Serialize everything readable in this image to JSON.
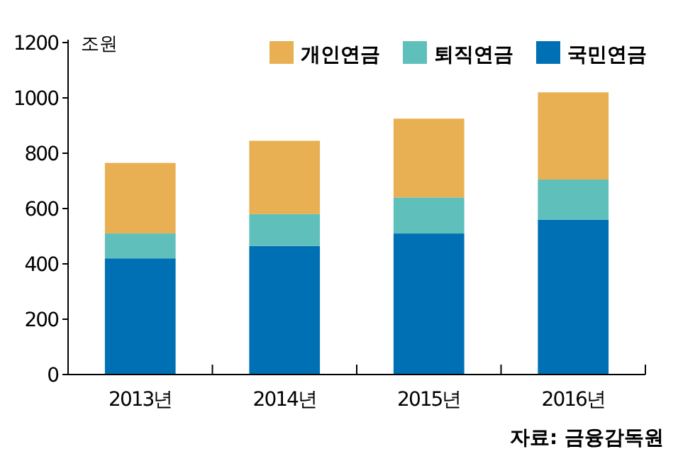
{
  "chart_data": {
    "type": "bar",
    "stacked": true,
    "ylabel": "조원",
    "categories": [
      "2013년",
      "2014년",
      "2015년",
      "2016년"
    ],
    "series": [
      {
        "name": "국민연금",
        "color": "#0070b4",
        "values": [
          420,
          465,
          510,
          560
        ]
      },
      {
        "name": "퇴직연금",
        "color": "#5ebfbb",
        "values": [
          90,
          115,
          130,
          145
        ]
      },
      {
        "name": "개인연금",
        "color": "#e8b052",
        "values": [
          255,
          265,
          285,
          315
        ]
      }
    ],
    "ylim": [
      0,
      1200
    ],
    "yticks": [
      0,
      200,
      400,
      600,
      800,
      1000,
      1200
    ],
    "legend": "top right",
    "grid": false,
    "annotations": [
      "자료: 금융감독원"
    ]
  }
}
